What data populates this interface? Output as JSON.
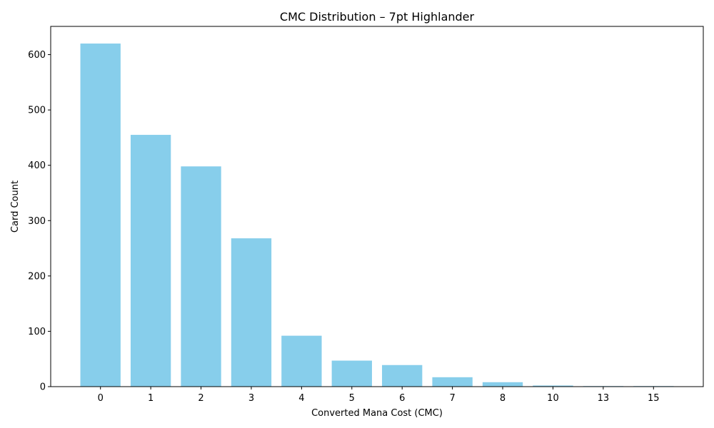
{
  "chart_data": {
    "type": "bar",
    "title": "CMC Distribution – 7pt Highlander",
    "xlabel": "Converted Mana Cost (CMC)",
    "ylabel": "Card Count",
    "categories": [
      "0",
      "1",
      "2",
      "3",
      "4",
      "5",
      "6",
      "7",
      "8",
      "10",
      "13",
      "15"
    ],
    "values": [
      620,
      455,
      398,
      268,
      92,
      47,
      39,
      17,
      8,
      2,
      1,
      1
    ],
    "yticks": [
      0,
      100,
      200,
      300,
      400,
      500,
      600
    ],
    "ylim": [
      0,
      651
    ],
    "bar_color": "#87CEEB",
    "grid": false,
    "legend": "none"
  }
}
